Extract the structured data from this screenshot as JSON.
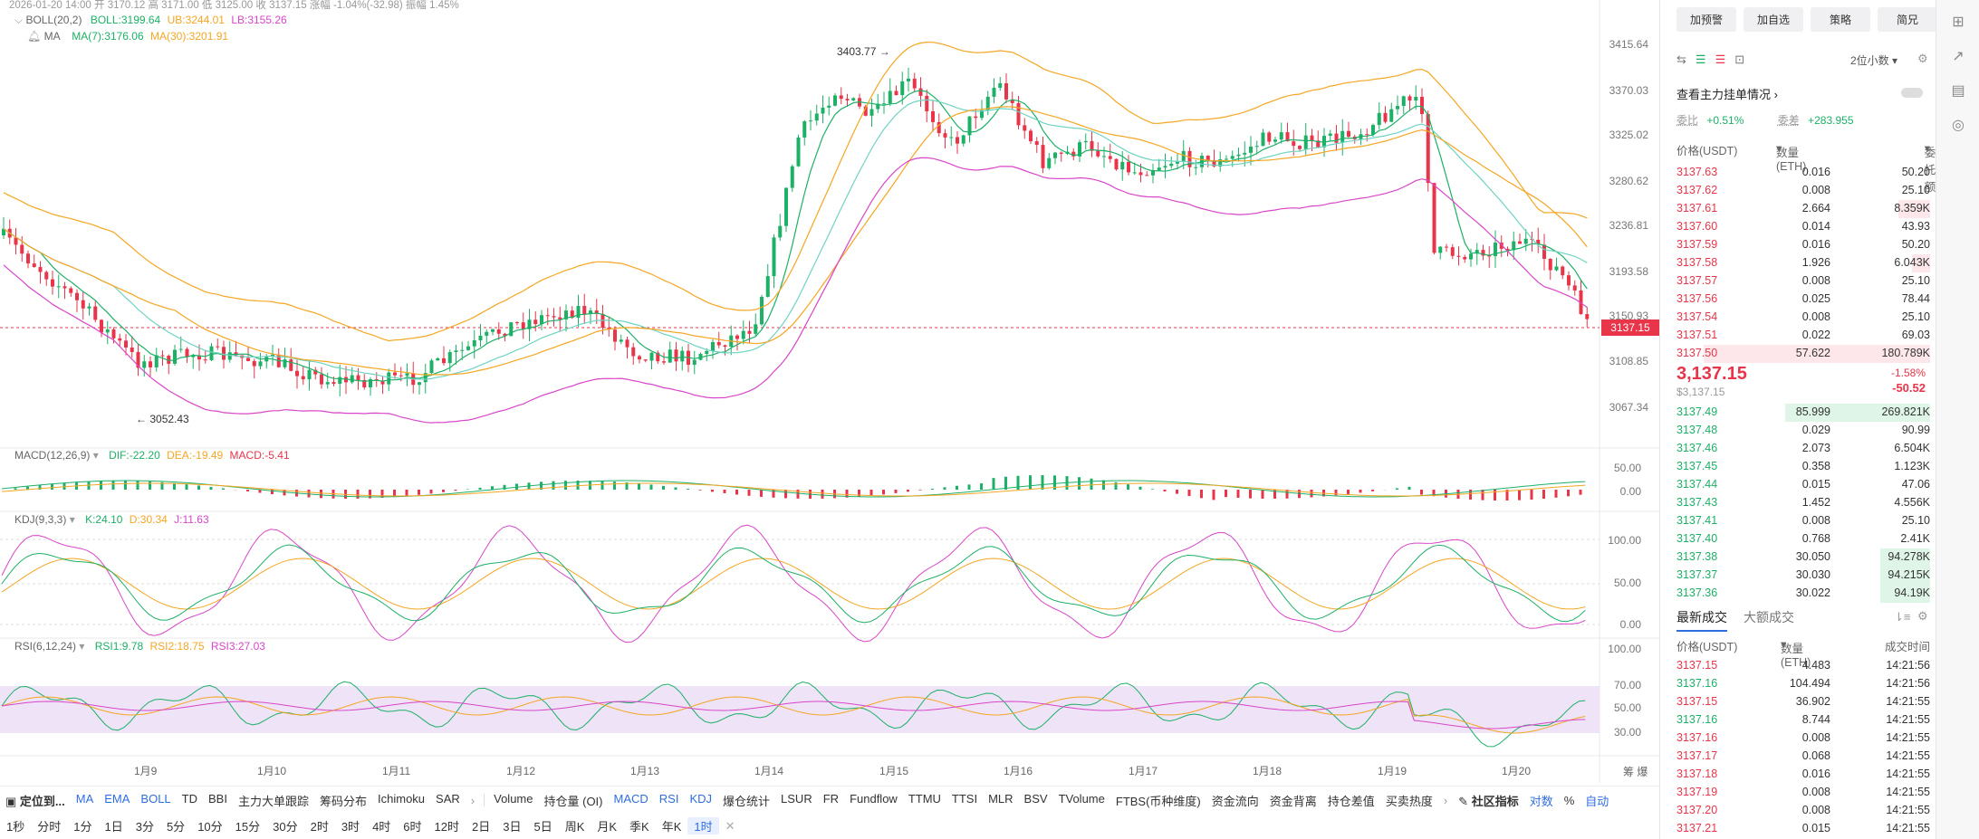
{
  "chart_header": {
    "candle_info": "2026-01-20 14:00 开 3170.12 高 3171.00 低 3125.00 收 3137.15 涨幅 -1.04%(-32.98) 振幅 1.45%",
    "boll_label": "BOLL(20,2)",
    "boll_mid": "BOLL:3199.64",
    "boll_ub": "UB:3244.01",
    "boll_lb": "LB:3155.26",
    "ma_label": "MA",
    "ma7": "MA(7):3176.06",
    "ma30": "MA(30):3201.91",
    "high_marker": "3403.77",
    "low_marker": "3052.43",
    "price_tag": "3137.15"
  },
  "price_axis": [
    "3415.64",
    "3370.03",
    "3325.02",
    "3280.62",
    "3236.81",
    "3193.58",
    "3150.93",
    "3108.85",
    "3067.34"
  ],
  "macd": {
    "label": "MACD(12,26,9)",
    "dif": "DIF:-22.20",
    "dea": "DEA:-19.49",
    "macd": "MACD:-5.41",
    "axis": [
      "50.00",
      "0.00"
    ]
  },
  "kdj": {
    "label": "KDJ(9,3,3)",
    "k": "K:24.10",
    "d": "D:30.34",
    "j": "J:11.63",
    "axis": [
      "100.00",
      "50.00",
      "0.00"
    ]
  },
  "rsi": {
    "label": "RSI(6,12,24)",
    "rsi1": "RSI1:9.78",
    "rsi2": "RSI2:18.75",
    "rsi3": "RSI3:27.03",
    "axis": [
      "100.00",
      "70.00",
      "50.00",
      "30.00"
    ]
  },
  "date_axis": [
    "1月9",
    "1月10",
    "1月11",
    "1月12",
    "1月13",
    "1月14",
    "1月15",
    "1月16",
    "1月17",
    "1月18",
    "1月19",
    "1月20"
  ],
  "axis_corner": [
    "筹",
    "爆"
  ],
  "indicator_toolbar": {
    "goto": "定位到...",
    "items": [
      "MA",
      "EMA",
      "BOLL",
      "TD",
      "BBI",
      "主力大单跟踪",
      "筹码分布",
      "Ichimoku",
      "SAR"
    ],
    "items2": [
      "Volume",
      "持仓量 (OI)",
      "MACD",
      "RSI",
      "KDJ",
      "爆仓统计",
      "LSUR",
      "FR",
      "Fundflow",
      "TTMU",
      "TTSI",
      "MLR",
      "BSV",
      "TVolume",
      "FTBS(币种维度)",
      "资金流向",
      "资金背离",
      "持仓差值",
      "买卖热度"
    ],
    "community": "社区指标",
    "log": "对数",
    "pct": "%",
    "auto": "自动"
  },
  "timeframes": [
    "1秒",
    "分时",
    "1分",
    "1日",
    "3分",
    "5分",
    "10分",
    "15分",
    "30分",
    "2时",
    "3时",
    "4时",
    "6时",
    "12时",
    "2日",
    "3日",
    "5日",
    "周K",
    "月K",
    "季K",
    "年K",
    "1时"
  ],
  "side_buttons": [
    "加预警",
    "加自选",
    "策略",
    "简兄"
  ],
  "orderbook": {
    "precision": "2位小数",
    "main_orders": "查看主力挂单情况",
    "ratio_label": "委比",
    "ratio_val": "+0.51%",
    "diff_label": "委差",
    "diff_val": "+283.955",
    "col_price": "价格(USDT)",
    "col_qty": "数量 (ETH)",
    "col_total": "委托额",
    "asks": [
      [
        "3137.63",
        "0.016",
        "50.20"
      ],
      [
        "3137.62",
        "0.008",
        "25.10"
      ],
      [
        "3137.61",
        "2.664",
        "8.359K"
      ],
      [
        "3137.60",
        "0.014",
        "43.93"
      ],
      [
        "3137.59",
        "0.016",
        "50.20"
      ],
      [
        "3137.58",
        "1.926",
        "6.043K"
      ],
      [
        "3137.57",
        "0.008",
        "25.10"
      ],
      [
        "3137.56",
        "0.025",
        "78.44"
      ],
      [
        "3137.54",
        "0.008",
        "25.10"
      ],
      [
        "3137.51",
        "0.022",
        "69.03"
      ],
      [
        "3137.50",
        "57.622",
        "180.789K"
      ]
    ],
    "last_price": "3,137.15",
    "last_price_usd": "$3,137.15",
    "change_pct": "-1.58%",
    "change_val": "-50.52",
    "bids": [
      [
        "3137.49",
        "85.999",
        "269.821K"
      ],
      [
        "3137.48",
        "0.029",
        "90.99"
      ],
      [
        "3137.46",
        "2.073",
        "6.504K"
      ],
      [
        "3137.45",
        "0.358",
        "1.123K"
      ],
      [
        "3137.44",
        "0.015",
        "47.06"
      ],
      [
        "3137.43",
        "1.452",
        "4.556K"
      ],
      [
        "3137.41",
        "0.008",
        "25.10"
      ],
      [
        "3137.40",
        "0.768",
        "2.41K"
      ],
      [
        "3137.38",
        "30.050",
        "94.278K"
      ],
      [
        "3137.37",
        "30.030",
        "94.215K"
      ],
      [
        "3137.36",
        "30.022",
        "94.19K"
      ]
    ]
  },
  "trades": {
    "tab_latest": "最新成交",
    "tab_large": "大额成交",
    "col_price": "价格(USDT)",
    "col_qty": "数量(ETH)",
    "col_time": "成交时间",
    "rows": [
      [
        "3137.15",
        "4.483",
        "14:21:56",
        "sell"
      ],
      [
        "3137.16",
        "104.494",
        "14:21:56",
        "buy"
      ],
      [
        "3137.15",
        "36.902",
        "14:21:55",
        "sell"
      ],
      [
        "3137.16",
        "8.744",
        "14:21:55",
        "buy"
      ],
      [
        "3137.16",
        "0.008",
        "14:21:55",
        "sell"
      ],
      [
        "3137.17",
        "0.068",
        "14:21:55",
        "sell"
      ],
      [
        "3137.18",
        "0.016",
        "14:21:55",
        "sell"
      ],
      [
        "3137.19",
        "0.008",
        "14:21:55",
        "sell"
      ],
      [
        "3137.20",
        "0.008",
        "14:21:55",
        "sell"
      ],
      [
        "3137.21",
        "0.015",
        "14:21:55",
        "sell"
      ]
    ]
  },
  "colors": {
    "up": "#1db067",
    "down": "#e8354a",
    "blue": "#2f6ee0",
    "boll": "#f5a623",
    "band": "#d946c9"
  }
}
